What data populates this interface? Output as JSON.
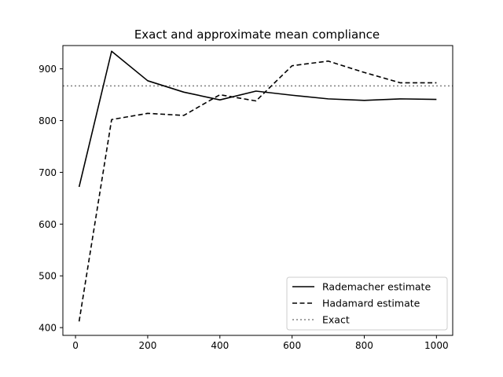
{
  "chart_data": {
    "type": "line",
    "title": "Exact and approximate mean compliance",
    "xlabel": "",
    "ylabel": "",
    "xlim": [
      -35,
      1045
    ],
    "ylim": [
      385,
      945
    ],
    "x_ticks": [
      0,
      200,
      400,
      600,
      800,
      1000
    ],
    "y_ticks": [
      400,
      500,
      600,
      700,
      800,
      900
    ],
    "x": [
      10,
      100,
      200,
      300,
      400,
      500,
      600,
      700,
      800,
      900,
      1000
    ],
    "series": [
      {
        "name": "Rademacher estimate",
        "style": "solid",
        "color": "#000000",
        "values": [
          672,
          934,
          877,
          855,
          840,
          857,
          849,
          842,
          839,
          842,
          841
        ]
      },
      {
        "name": "Hadamard estimate",
        "style": "dashed",
        "color": "#000000",
        "values": [
          412,
          802,
          814,
          810,
          850,
          838,
          906,
          915,
          893,
          873,
          873
        ]
      }
    ],
    "reference_lines": [
      {
        "name": "Exact",
        "style": "dotted",
        "color": "#808080",
        "y": 867
      }
    ],
    "legend_position": "lower-right",
    "grid": false
  }
}
